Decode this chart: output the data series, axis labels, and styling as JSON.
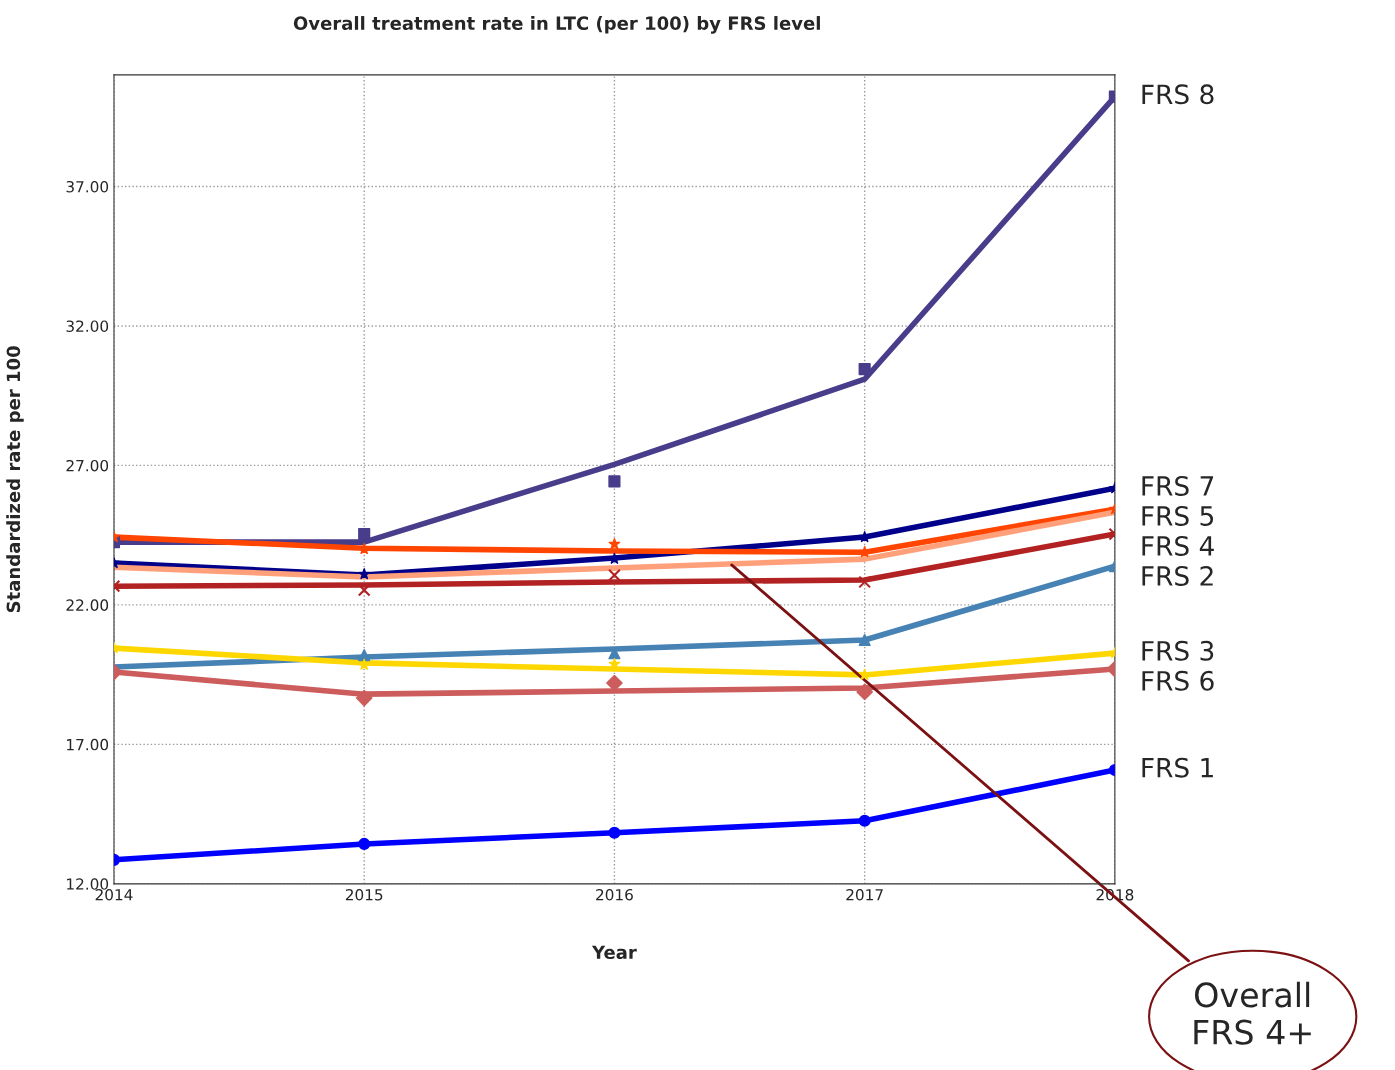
{
  "chart_data": {
    "type": "line",
    "title": "Overall treatment rate in LTC (per 100) by FRS level",
    "xlabel": "Year",
    "ylabel": "Standardized rate per 100",
    "x": [
      2014,
      2015,
      2016,
      2017,
      2018
    ],
    "xlim": [
      2014,
      2018
    ],
    "xticks": [
      2014,
      2015,
      2016,
      2017,
      2018
    ],
    "ylim": [
      12,
      41
    ],
    "yticks": [
      {
        "value": 12,
        "label": "12.00"
      },
      {
        "value": 17,
        "label": "17.00"
      },
      {
        "value": 22,
        "label": "22.00"
      },
      {
        "value": 27,
        "label": "27.00"
      },
      {
        "value": 32,
        "label": "32.00"
      },
      {
        "value": 37,
        "label": "37.00"
      }
    ],
    "grid": true,
    "legend": false,
    "line_style": "solid",
    "series": [
      {
        "name": "FRS 8",
        "color": "#483d8b",
        "values": [
          24.25,
          24.25,
          27.04,
          30.09,
          40.22
        ]
      },
      {
        "type": "scatter",
        "marker": "square",
        "color": "#483d8b",
        "values": [
          24.25,
          24.54,
          26.43,
          30.45,
          40.22
        ]
      },
      {
        "name": "FRS 7",
        "color": "#00008b",
        "values": [
          23.5,
          23.07,
          23.68,
          24.43,
          26.18
        ]
      },
      {
        "type": "scatter",
        "marker": "star",
        "color": "#00008b",
        "values": [
          23.5,
          23.1,
          23.65,
          24.43,
          26.18
        ]
      },
      {
        "name": "FRS 5",
        "color": "#ff4500",
        "values": [
          24.43,
          24.03,
          23.93,
          23.89,
          25.43
        ]
      },
      {
        "type": "scatter",
        "marker": "star",
        "color": "#ff4500",
        "values": [
          24.43,
          24.0,
          24.18,
          23.89,
          25.43
        ]
      },
      {
        "color": "#ffa07a",
        "values": [
          23.35,
          23.0,
          23.32,
          23.64,
          25.32
        ]
      },
      {
        "name": "FRS 4",
        "color": "#b22222",
        "values": [
          22.67,
          22.71,
          22.82,
          22.89,
          24.54
        ]
      },
      {
        "type": "scatter",
        "marker": "cross",
        "color": "#b22222",
        "values": [
          22.67,
          22.53,
          23.07,
          22.82,
          24.54
        ]
      },
      {
        "name": "FRS 2",
        "color": "#4682b4",
        "values": [
          19.77,
          20.13,
          20.42,
          20.74,
          23.39
        ]
      },
      {
        "type": "scatter",
        "marker": "triangle",
        "color": "#4682b4",
        "values": [
          null,
          20.2,
          20.27,
          20.74,
          23.39
        ]
      },
      {
        "name": "FRS 3",
        "color": "#ffd700",
        "values": [
          20.45,
          19.92,
          19.7,
          19.49,
          20.27
        ]
      },
      {
        "type": "scatter",
        "marker": "star",
        "color": "#ffd700",
        "values": [
          20.45,
          19.85,
          19.88,
          19.49,
          20.27
        ]
      },
      {
        "name": "FRS 6",
        "color": "#cd5c5c",
        "values": [
          19.59,
          18.8,
          18.91,
          19.02,
          19.7
        ]
      },
      {
        "type": "scatter",
        "marker": "diamond",
        "color": "#cd5c5c",
        "values": [
          19.59,
          18.66,
          19.2,
          18.88,
          19.7
        ]
      },
      {
        "name": "FRS 1",
        "color": "#0000ff",
        "values": [
          12.86,
          13.43,
          13.83,
          14.26,
          16.08
        ]
      },
      {
        "type": "scatter",
        "marker": "circle",
        "color": "#0000ff",
        "values": [
          12.86,
          13.43,
          13.83,
          14.26,
          16.08
        ]
      }
    ],
    "annotations": [
      {
        "text": "Overall\nFRS 4+",
        "x": 2016.46,
        "y": 23.5
      }
    ]
  }
}
